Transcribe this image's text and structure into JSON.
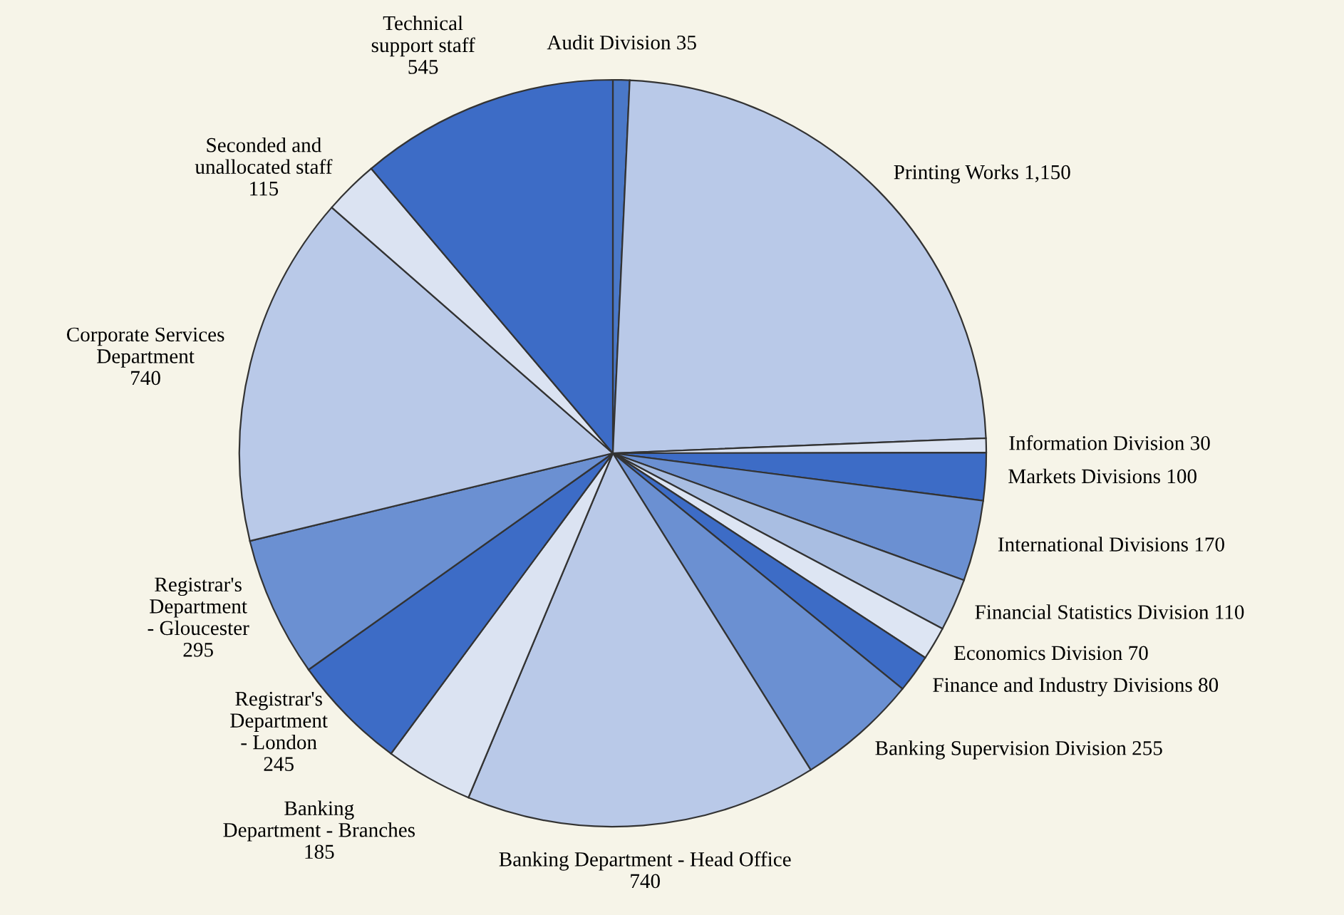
{
  "chart_data": {
    "type": "pie",
    "categories": [
      "Audit Division",
      "Printing Works",
      "Information Division",
      "Markets Divisions",
      "International Divisions",
      "Financial Statistics Division",
      "Economics Division",
      "Finance and Industry Divisions",
      "Banking Supervision Division",
      "Banking Department - Head Office",
      "Banking\nDepartment - Branches",
      "Registrar's\nDepartment\n- London",
      "Registrar's\nDepartment\n- Gloucester",
      "Corporate Services\nDepartment",
      "Seconded and\nunallocated staff",
      "Technical\nsupport staff"
    ],
    "values": [
      35,
      1150,
      30,
      100,
      170,
      110,
      70,
      80,
      255,
      740,
      185,
      245,
      295,
      740,
      115,
      545
    ],
    "value_labels": [
      "35",
      "1,150",
      "30",
      "100",
      "170",
      "110",
      "70",
      "80",
      "255",
      "740",
      "185",
      "245",
      "295",
      "740",
      "115",
      "545"
    ],
    "colors": [
      "#4a78c8",
      "#b9c9e8",
      "#dbe3f2",
      "#3d6cc6",
      "#6b90d2",
      "#a9bee2",
      "#dde5f3",
      "#3d6cc6",
      "#6b90d2",
      "#b9c9e8",
      "#dbe3f2",
      "#3d6cc6",
      "#6b90d2",
      "#b9c9e8",
      "#dbe3f2",
      "#3d6cc6"
    ],
    "legend": false
  }
}
